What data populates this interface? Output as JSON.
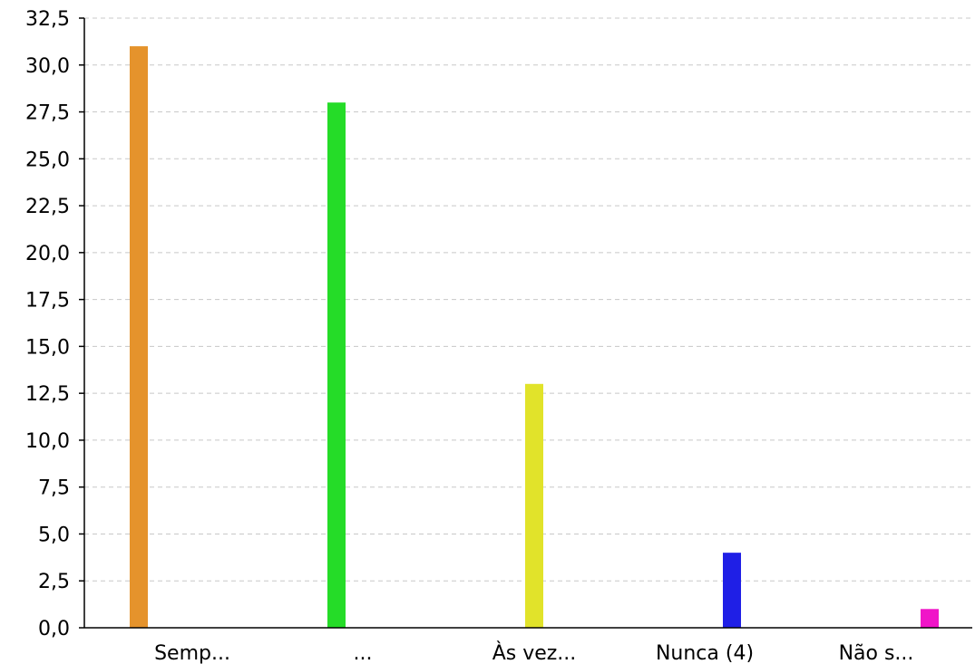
{
  "chart_data": {
    "type": "bar",
    "categories": [
      "Semp...",
      "...",
      "Às vez...",
      "Nunca (4)",
      "Não s..."
    ],
    "values": [
      31,
      28,
      13,
      4,
      1
    ],
    "colors": [
      "#e5932c",
      "#25dc28",
      "#e1e32a",
      "#1f1fe6",
      "#f015c8"
    ],
    "ylim": [
      0,
      32.5
    ],
    "yticks": [
      "0,0",
      "2,5",
      "5,0",
      "7,5",
      "10,0",
      "12,5",
      "15,0",
      "17,5",
      "20,0",
      "22,5",
      "25,0",
      "27,5",
      "30,0",
      "32,5"
    ],
    "ytick_step": 2.5,
    "grid": true,
    "title": "",
    "xlabel": "",
    "ylabel": ""
  }
}
